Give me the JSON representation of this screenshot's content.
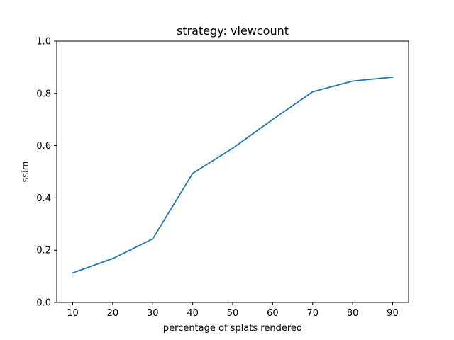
{
  "chart_data": {
    "type": "line",
    "title": "strategy: viewcount",
    "xlabel": "percentage of splats rendered",
    "ylabel": "ssim",
    "x": [
      10,
      20,
      30,
      40,
      50,
      60,
      70,
      80,
      90
    ],
    "series": [
      {
        "values": [
          0.113,
          0.168,
          0.243,
          0.494,
          0.59,
          0.7,
          0.806,
          0.847,
          0.862
        ],
        "color": "#1f77b4"
      }
    ],
    "xlim": [
      6,
      94
    ],
    "ylim": [
      0.0,
      1.0
    ],
    "xticks": [
      10,
      20,
      30,
      40,
      50,
      60,
      70,
      80,
      90
    ],
    "yticks": [
      0.0,
      0.2,
      0.4,
      0.6,
      0.8,
      1.0
    ],
    "ytick_labels": [
      "0.0",
      "0.2",
      "0.4",
      "0.6",
      "0.8",
      "1.0"
    ],
    "grid": false,
    "legend": "none"
  }
}
